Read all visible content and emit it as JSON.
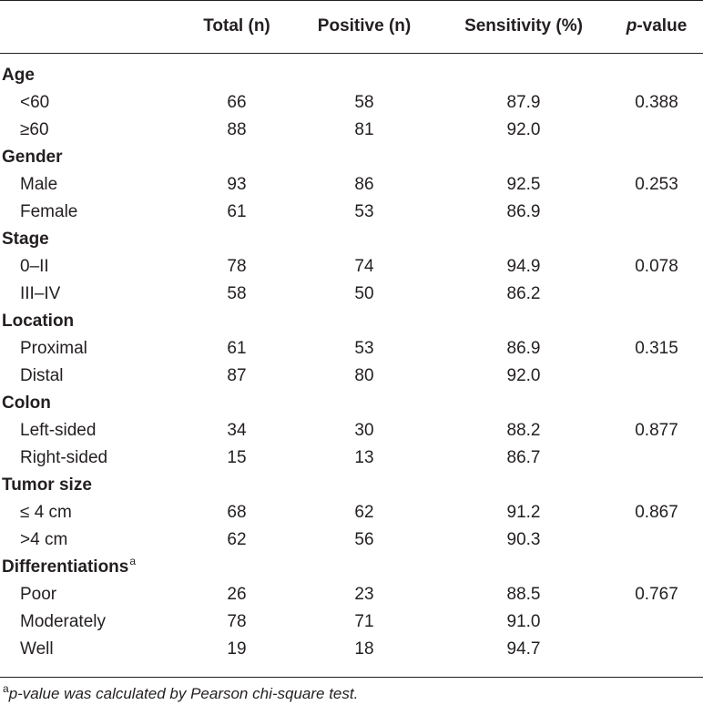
{
  "table": {
    "headers": {
      "total": "Total (n)",
      "positive": "Positive (n)",
      "sensitivity": "Sensitivity (%)",
      "pvalue_italic": "p",
      "pvalue_rest": "-value"
    },
    "groups": [
      {
        "label": "Age",
        "rows": [
          {
            "label": "<60",
            "total": "66",
            "positive": "58",
            "sensitivity": "87.9",
            "pvalue": "0.388"
          },
          {
            "label": "≥60",
            "total": "88",
            "positive": "81",
            "sensitivity": "92.0",
            "pvalue": ""
          }
        ]
      },
      {
        "label": "Gender",
        "rows": [
          {
            "label": "Male",
            "total": "93",
            "positive": "86",
            "sensitivity": "92.5",
            "pvalue": "0.253"
          },
          {
            "label": "Female",
            "total": "61",
            "positive": "53",
            "sensitivity": "86.9",
            "pvalue": ""
          }
        ]
      },
      {
        "label": "Stage",
        "rows": [
          {
            "label": "0–II",
            "total": "78",
            "positive": "74",
            "sensitivity": "94.9",
            "pvalue": "0.078"
          },
          {
            "label": "III–IV",
            "total": "58",
            "positive": "50",
            "sensitivity": "86.2",
            "pvalue": ""
          }
        ]
      },
      {
        "label": "Location",
        "rows": [
          {
            "label": "Proximal",
            "total": "61",
            "positive": "53",
            "sensitivity": "86.9",
            "pvalue": "0.315"
          },
          {
            "label": "Distal",
            "total": "87",
            "positive": "80",
            "sensitivity": "92.0",
            "pvalue": ""
          }
        ]
      },
      {
        "label": "Colon",
        "rows": [
          {
            "label": "Left-sided",
            "total": "34",
            "positive": "30",
            "sensitivity": "88.2",
            "pvalue": "0.877"
          },
          {
            "label": "Right-sided",
            "total": "15",
            "positive": "13",
            "sensitivity": "86.7",
            "pvalue": ""
          }
        ]
      },
      {
        "label": "Tumor size",
        "rows": [
          {
            "label": "≤ 4 cm",
            "total": "68",
            "positive": "62",
            "sensitivity": "91.2",
            "pvalue": "0.867"
          },
          {
            "label": ">4 cm",
            "total": "62",
            "positive": "56",
            "sensitivity": "90.3",
            "pvalue": ""
          }
        ]
      },
      {
        "label": "Differentiations",
        "sup": "a",
        "rows": [
          {
            "label": "Poor",
            "total": "26",
            "positive": "23",
            "sensitivity": "88.5",
            "pvalue": "0.767"
          },
          {
            "label": "Moderately",
            "total": "78",
            "positive": "71",
            "sensitivity": "91.0",
            "pvalue": ""
          },
          {
            "label": "Well",
            "total": "19",
            "positive": "18",
            "sensitivity": "94.7",
            "pvalue": ""
          }
        ]
      }
    ]
  },
  "footnote": {
    "marker": "a",
    "text": "p-value was calculated by Pearson chi-square test."
  }
}
